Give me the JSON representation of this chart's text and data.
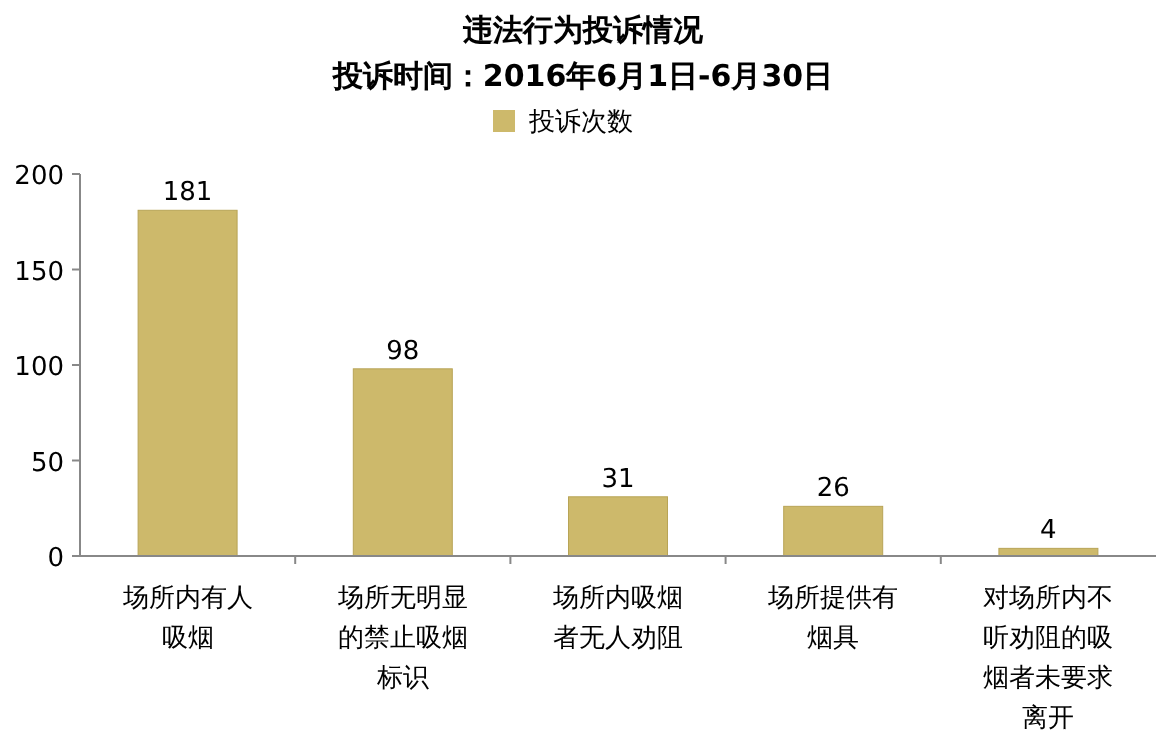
{
  "chart_data": {
    "type": "bar",
    "title": "违法行为投诉情况",
    "subtitle": "投诉时间：2016年6月1日-6月30日",
    "categories": [
      "场所内有人吸烟",
      "场所无明显的禁止吸烟标识",
      "场所内吸烟者无人劝阻",
      "场所提供有烟具",
      "对场所内不听劝阻的吸烟者未要求离开"
    ],
    "series": [
      {
        "name": "投诉次数",
        "color": "#cdb96b",
        "values": [
          181,
          98,
          31,
          26,
          4
        ]
      }
    ],
    "ylim": [
      0,
      200
    ],
    "yticks": [
      0,
      50,
      100,
      150,
      200
    ],
    "data_labels": true,
    "legend": "top",
    "grid": false
  }
}
